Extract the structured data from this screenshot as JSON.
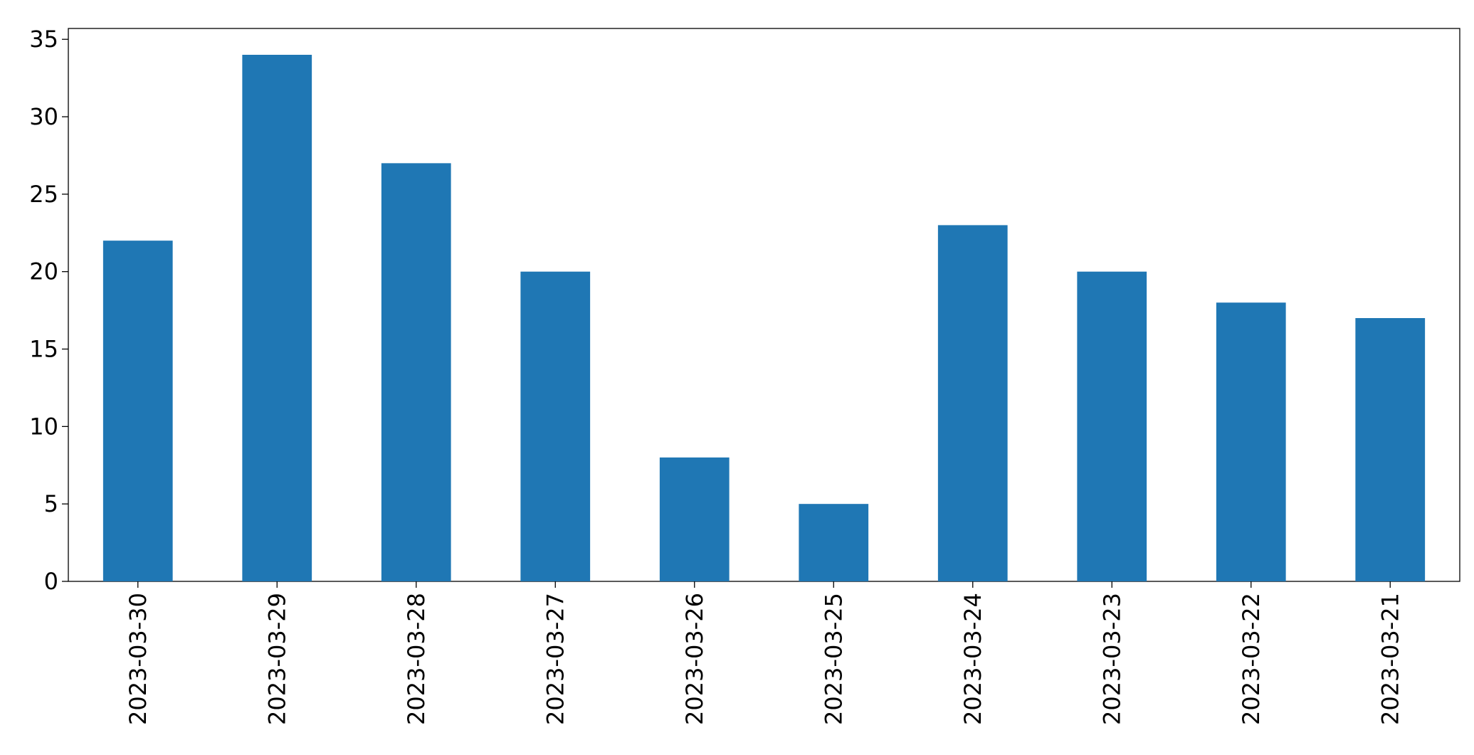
{
  "chart_data": {
    "type": "bar",
    "categories": [
      "2023-03-30",
      "2023-03-29",
      "2023-03-28",
      "2023-03-27",
      "2023-03-26",
      "2023-03-25",
      "2023-03-24",
      "2023-03-23",
      "2023-03-22",
      "2023-03-21"
    ],
    "values": [
      22,
      34,
      27,
      20,
      8,
      5,
      23,
      20,
      18,
      17
    ],
    "color": "#1f77b4",
    "ylim": [
      0,
      35.7
    ],
    "yticks": [
      0,
      5,
      10,
      15,
      20,
      25,
      30,
      35
    ],
    "grid": false
  }
}
